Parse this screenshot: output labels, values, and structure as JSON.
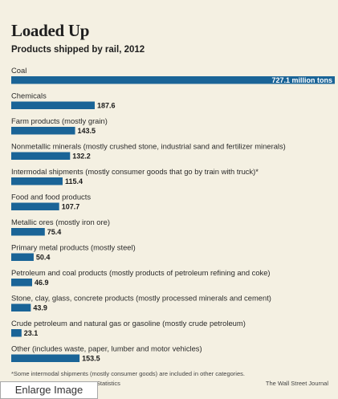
{
  "chart_data": {
    "type": "bar",
    "orientation": "horizontal",
    "title": "Loaded Up",
    "subtitle": "Products shipped by rail, 2012",
    "unit": "million tons",
    "categories": [
      "Coal",
      "Chemicals",
      "Farm products (mostly grain)",
      "Nonmetallic minerals (mostly crushed stone, industrial sand and fertilizer minerals)",
      "Intermodal shipments (mostly consumer goods that go by train with truck)*",
      "Food and food products",
      "Metallic ores (mostly iron ore)",
      "Primary metal products (mostly steel)",
      "Petroleum and coal products (mostly products of petroleum refining and coke)",
      "Stone, clay, glass, concrete products (mostly processed minerals and cement)",
      "Crude petroleum and natural gas or gasoline (mostly crude petroleum)",
      "Other (includes waste, paper, lumber and motor vehicles)"
    ],
    "values": [
      727.1,
      187.6,
      143.5,
      132.2,
      115.4,
      107.7,
      75.4,
      50.4,
      46.9,
      43.9,
      23.1,
      153.5
    ],
    "value_labels": [
      "727.1 million tons",
      "187.6",
      "143.5",
      "132.2",
      "115.4",
      "107.7",
      "75.4",
      "50.4",
      "46.9",
      "43.9",
      "23.1",
      "153.5"
    ],
    "bar_color": "#1a6497",
    "label_color": "#1a1a1a"
  },
  "footnote": "*Some intermodal shipments (mostly consumer goods) are included in other categories.",
  "source": "ty Statistics",
  "credit": "The Wall Street Journal",
  "enlarge_button": "Enlarge Image",
  "colors": {
    "background": "#f4f0e2",
    "bar": "#1a6497"
  }
}
